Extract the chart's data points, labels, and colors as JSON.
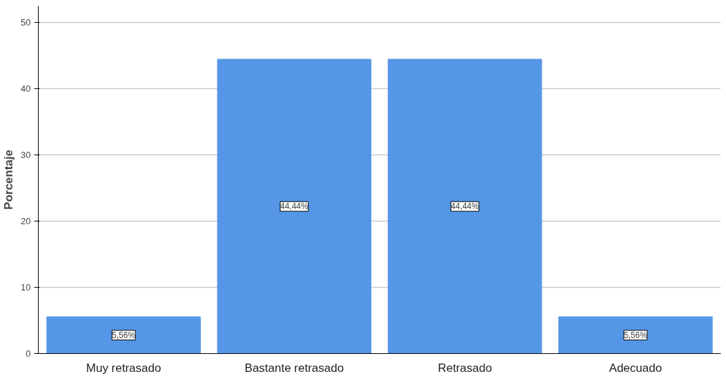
{
  "chart_data": {
    "type": "bar",
    "ylabel": "Porcentaje",
    "categories": [
      "Muy retrasado",
      "Bastante retrasado",
      "Retrasado",
      "Adecuado"
    ],
    "values": [
      5.56,
      44.44,
      44.44,
      5.56
    ],
    "value_labels": [
      "5,56%",
      "44,44%",
      "44,44%",
      "5,56%"
    ],
    "color": "#5596e6",
    "ylim": [
      0,
      52.5
    ],
    "yticks": [
      0,
      10,
      20,
      30,
      40,
      50
    ],
    "grid": "y"
  }
}
